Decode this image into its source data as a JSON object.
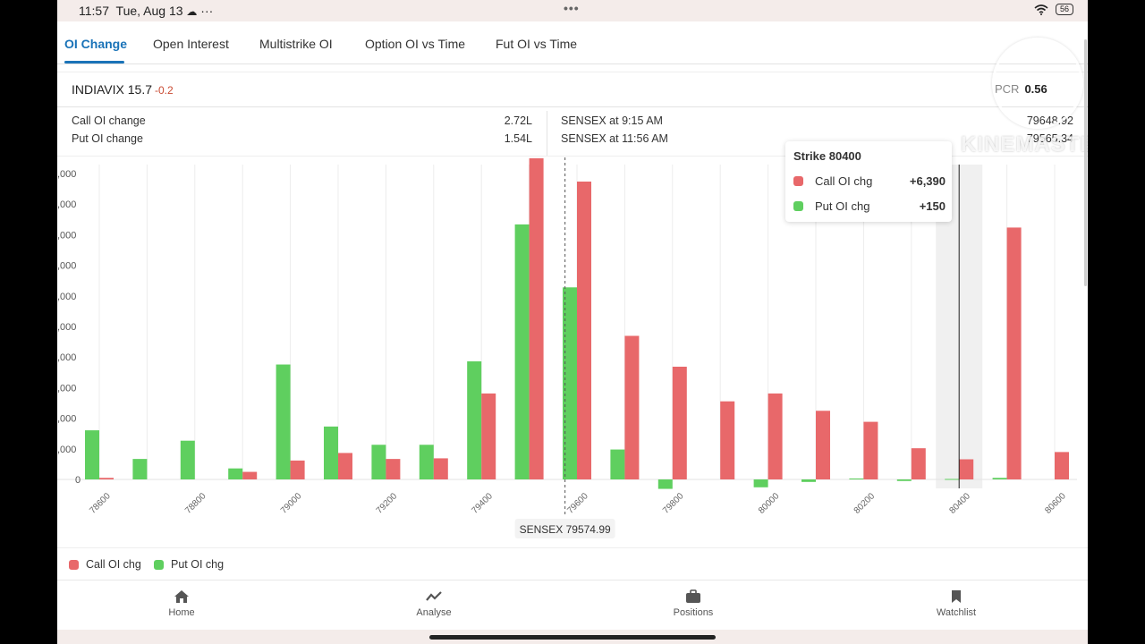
{
  "status_bar": {
    "time": "11:57",
    "date": "Tue, Aug 13",
    "more": "···",
    "center_dots": "•••",
    "battery": "56"
  },
  "tabs": [
    {
      "label": "OI Change",
      "active": true
    },
    {
      "label": "Open Interest",
      "active": false
    },
    {
      "label": "Multistrike OI",
      "active": false
    },
    {
      "label": "Option OI vs Time",
      "active": false
    },
    {
      "label": "Fut OI vs Time",
      "active": false
    }
  ],
  "vix": {
    "name": "INDIAVIX",
    "value": "15.7",
    "change": "-0.2"
  },
  "pcr": {
    "label": "PCR",
    "value": "0.56"
  },
  "stats": {
    "call_oi_change_label": "Call OI change",
    "call_oi_change_value": "2.72L",
    "put_oi_change_label": "Put OI change",
    "put_oi_change_value": "1.54L",
    "open_label": "SENSEX at 9:15 AM",
    "open_value": "79648.92",
    "now_label": "SENSEX at 11:56 AM",
    "now_value": "79565.34"
  },
  "tooltip": {
    "title": "Strike 80400",
    "call_label": "Call OI chg",
    "call_value": "+6,390",
    "put_label": "Put OI chg",
    "put_value": "+150"
  },
  "spot_marker": "SENSEX 79574.99",
  "colors": {
    "call": "#e8686a",
    "put": "#5fcf5f",
    "accent": "#1a73b8"
  },
  "chart_data": {
    "type": "bar",
    "categories": [
      78600,
      78700,
      78800,
      78900,
      79000,
      79100,
      79200,
      79300,
      79400,
      79500,
      79600,
      79700,
      79800,
      79900,
      80000,
      80100,
      80200,
      80300,
      80400,
      80500,
      80600
    ],
    "tick_labels": [
      "78600",
      "78800",
      "79000",
      "79200",
      "79400",
      "79600",
      "79800",
      "80000",
      "80200",
      "80400",
      "80600"
    ],
    "y_tick_labels": [
      ",000",
      ",000",
      ",000",
      ",000",
      ",000",
      ",000",
      ",000",
      ",000",
      ",000",
      ",000",
      "0"
    ],
    "ylim": [
      -4000,
      100000
    ],
    "series": [
      {
        "name": "Put OI chg",
        "color": "#5fcf5f",
        "values": [
          15600,
          6500,
          12300,
          3500,
          36500,
          16800,
          11000,
          11000,
          37500,
          81000,
          61000,
          9500,
          -3000,
          0,
          -2500,
          -800,
          300,
          -500,
          150,
          500,
          0
        ]
      },
      {
        "name": "Call OI chg",
        "color": "#e8686a",
        "values": [
          500,
          0,
          0,
          2400,
          6000,
          8400,
          6500,
          6700,
          27300,
          102000,
          94600,
          45600,
          35800,
          24800,
          27300,
          21800,
          18300,
          9900,
          6390,
          80000,
          8700
        ]
      }
    ],
    "spot_value": 79574.99,
    "highlight_strike": 80400,
    "legend": [
      "Call OI chg",
      "Put OI chg"
    ],
    "legend_position": "bottom-left",
    "grid": true
  },
  "nav": [
    {
      "label": "Home",
      "icon": "home-icon"
    },
    {
      "label": "Analyse",
      "icon": "analyse-icon"
    },
    {
      "label": "Positions",
      "icon": "briefcase-icon"
    },
    {
      "label": "Watchlist",
      "icon": "bookmark-icon"
    }
  ],
  "watermark": "KINEMASTER"
}
